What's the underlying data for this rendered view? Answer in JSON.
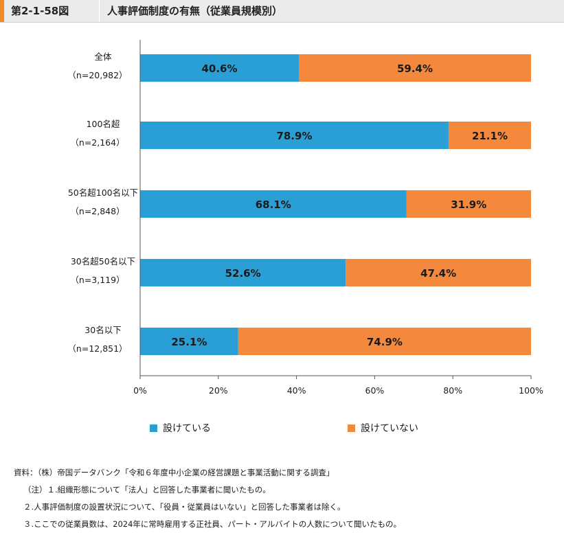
{
  "header": {
    "figure_no": "第2-1-58図",
    "title": "人事評価制度の有無（従業員規模別）"
  },
  "colors": {
    "series_a": "#2a9fd6",
    "series_b": "#f4883c",
    "accent": "#f08a24"
  },
  "chart_data": {
    "type": "bar",
    "orientation": "horizontal",
    "stacked": true,
    "categories": [
      "全体",
      "100名超",
      "50名超100名以下",
      "30名超50名以下",
      "30名以下"
    ],
    "category_counts": [
      "（n=20,982）",
      "（n=2,164）",
      "（n=2,848）",
      "（n=3,119）",
      "（n=12,851）"
    ],
    "series": [
      {
        "name": "設けている",
        "values": [
          40.6,
          78.9,
          68.1,
          52.6,
          25.1
        ],
        "color": "#2a9fd6"
      },
      {
        "name": "設けていない",
        "values": [
          59.4,
          21.1,
          31.9,
          47.4,
          74.9
        ],
        "color": "#f4883c"
      }
    ],
    "data_labels": [
      [
        "40.6%",
        "78.9%",
        "68.1%",
        "52.6%",
        "25.1%"
      ],
      [
        "59.4%",
        "21.1%",
        "31.9%",
        "47.4%",
        "74.9%"
      ]
    ],
    "xlim": [
      0,
      100
    ],
    "xticks": [
      "0%",
      "20%",
      "40%",
      "60%",
      "80%",
      "100%"
    ],
    "grid": false,
    "legend": "bottom"
  },
  "legend": {
    "item1": "設けている",
    "item2": "設けていない"
  },
  "notes": {
    "source": "資料：（株）帝国データバンク「令和６年度中小企業の経営課題と事業活動に関する調査」",
    "note1": "（注）１.組織形態について「法人」と回答した事業者に聞いたもの。",
    "note2": "２.人事評価制度の設置状況について、「役員・従業員はいない」と回答した事業者は除く。",
    "note3": "３.ここでの従業員数は、2024年に常時雇用する正社員、パート・アルバイトの人数について聞いたもの。"
  }
}
